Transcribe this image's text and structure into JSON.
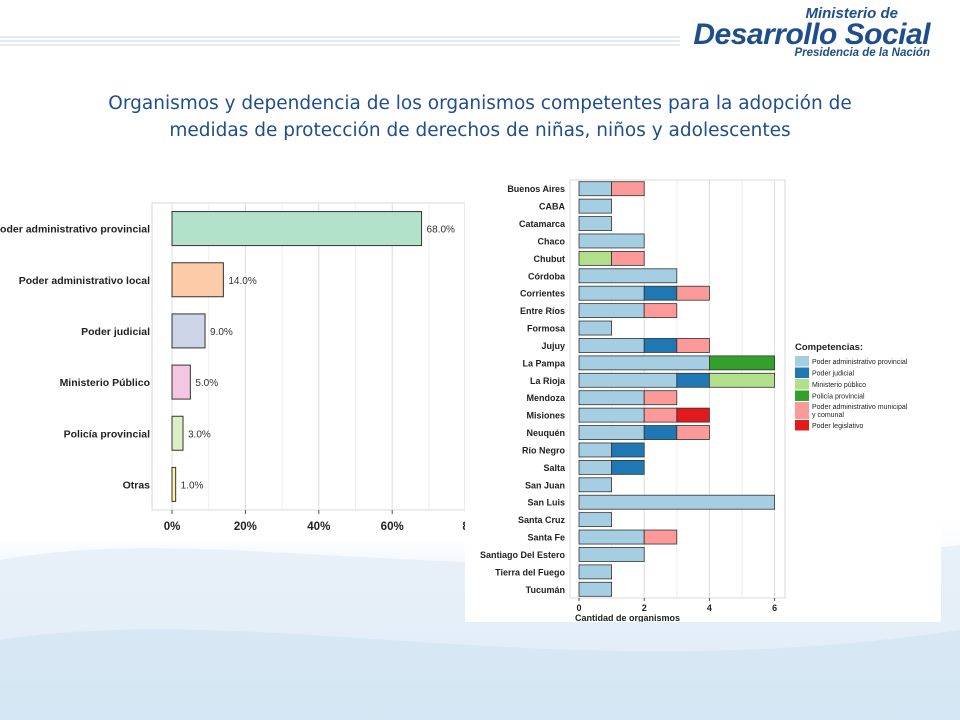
{
  "logo": {
    "line1": "Ministerio de",
    "line2": "Desarrollo Social",
    "line3": "Presidencia de la Nación"
  },
  "title_line1": "Organismos y dependencia de los organismos competentes para la adopción de",
  "title_line2": "medidas de protección de derechos de niñas, niños y adolescentes",
  "chart_data": [
    {
      "type": "bar",
      "orientation": "horizontal",
      "categories": [
        "Poder administrativo provincial",
        "Poder administrativo local",
        "Poder judicial",
        "Ministerio Público",
        "Policía provincial",
        "Otras"
      ],
      "values": [
        68.0,
        14.0,
        9.0,
        5.0,
        3.0,
        1.0
      ],
      "data_labels": [
        "68.0%",
        "14.0%",
        "9.0%",
        "5.0%",
        "3.0%",
        "1.0%"
      ],
      "colors": [
        "#b2e2c9",
        "#fccba8",
        "#cdd5e8",
        "#f3c6e2",
        "#ddf0c5",
        "#fff2a8"
      ],
      "x_ticks": [
        "0%",
        "20%",
        "40%",
        "60%",
        "8"
      ],
      "xlim": [
        0,
        80
      ],
      "grid": true
    },
    {
      "type": "bar",
      "orientation": "horizontal",
      "stacked": true,
      "xlabel": "Cantidad de organismos",
      "x_ticks": [
        "0",
        "2",
        "4",
        "6"
      ],
      "xlim": [
        0,
        6.3
      ],
      "grid": true,
      "legend_title": "Competencias:",
      "legend_position": "right",
      "legend_entries": [
        "Poder administrativo provincial",
        "Poder judicial",
        "Ministerio público",
        "Policía provincial",
        "Poder administrativo municipal y comunal",
        "Poder legislativo"
      ],
      "legend_colors": [
        "#a6cee3",
        "#1f78b4",
        "#b2df8a",
        "#33a02c",
        "#fb9a99",
        "#e31a1c"
      ],
      "categories": [
        "Buenos Aires",
        "CABA",
        "Catamarca",
        "Chaco",
        "Chubut",
        "Córdoba",
        "Corrientes",
        "Entre Ríos",
        "Formosa",
        "Jujuy",
        "La Pampa",
        "La Rioja",
        "Mendoza",
        "Misiones",
        "Neuquén",
        "Río Negro",
        "Salta",
        "San Juan",
        "San Luis",
        "Santa Cruz",
        "Santa Fe",
        "Santiago Del Estero",
        "Tierra del Fuego",
        "Tucumán"
      ],
      "series": [
        {
          "name": "Poder administrativo provincial",
          "values": [
            1,
            1,
            1,
            2,
            0,
            3,
            2,
            2,
            1,
            2,
            4,
            3,
            2,
            2,
            2,
            1,
            1,
            1,
            6,
            1,
            2,
            2,
            1,
            1
          ]
        },
        {
          "name": "Poder judicial",
          "values": [
            0,
            0,
            0,
            0,
            0,
            0,
            1,
            0,
            0,
            1,
            0,
            1,
            0,
            0,
            1,
            1,
            1,
            0,
            0,
            0,
            0,
            0,
            0,
            0
          ]
        },
        {
          "name": "Ministerio público",
          "values": [
            0,
            0,
            0,
            0,
            1,
            0,
            0,
            0,
            0,
            0,
            0,
            2,
            0,
            0,
            0,
            0,
            0,
            0,
            0,
            0,
            0,
            0,
            0,
            0
          ]
        },
        {
          "name": "Policía provincial",
          "values": [
            0,
            0,
            0,
            0,
            0,
            0,
            0,
            0,
            0,
            0,
            2,
            0,
            0,
            0,
            0,
            0,
            0,
            0,
            0,
            0,
            0,
            0,
            0,
            0
          ]
        },
        {
          "name": "Poder administrativo municipal y comunal",
          "values": [
            1,
            0,
            0,
            0,
            1,
            0,
            1,
            1,
            0,
            1,
            0,
            0,
            1,
            1,
            1,
            0,
            0,
            0,
            0,
            0,
            1,
            0,
            0,
            0
          ]
        },
        {
          "name": "Poder legislativo",
          "values": [
            0,
            0,
            0,
            0,
            0,
            0,
            0,
            0,
            0,
            0,
            0,
            0,
            0,
            1,
            0,
            0,
            0,
            0,
            0,
            0,
            0,
            0,
            0,
            0
          ]
        }
      ]
    }
  ]
}
